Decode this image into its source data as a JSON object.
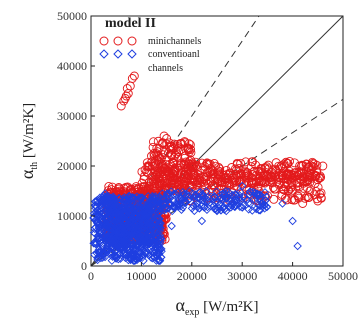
{
  "chart_data": {
    "type": "scatter",
    "model_label": "model II",
    "xlabel": {
      "symbol": "α",
      "subscript": "exp",
      "unit": " [W/m²K]"
    },
    "ylabel": {
      "symbol": "α",
      "subscript": "th",
      "unit": " [W/m²K]"
    },
    "xlim": [
      0,
      50000
    ],
    "ylim": [
      0,
      50000
    ],
    "xticks": [
      "0",
      "10000",
      "20000",
      "30000",
      "40000",
      "50000"
    ],
    "yticks": [
      "0",
      "10000",
      "20000",
      "30000",
      "40000",
      "50000"
    ],
    "reference_lines": [
      {
        "style": "solid",
        "slope": 1.0
      },
      {
        "style": "dashed",
        "slope": 1.5
      },
      {
        "style": "dashed",
        "slope": 0.6667
      }
    ],
    "legend_placement": "top-left",
    "series": [
      {
        "name": "minichannels",
        "marker": "circle",
        "color": "#e31a1c",
        "clusters": [
          {
            "x": [
              3000,
              15000
            ],
            "y": [
              5000,
              16000
            ],
            "n": 520
          },
          {
            "x": [
              10000,
              45000
            ],
            "y": [
              16500,
              21000
            ],
            "n": 260
          },
          {
            "x": [
              12000,
              20000
            ],
            "y": [
              15000,
              25000
            ],
            "n": 140
          },
          {
            "x": [
              18000,
              46000
            ],
            "y": [
              13000,
              19000
            ],
            "n": 220
          }
        ],
        "points": [
          [
            6000,
            32000
          ],
          [
            6500,
            33000
          ],
          [
            7000,
            34000
          ],
          [
            7200,
            35500
          ],
          [
            7800,
            36000
          ],
          [
            8200,
            37500
          ],
          [
            8600,
            38000
          ],
          [
            6800,
            33500
          ],
          [
            7400,
            34500
          ],
          [
            12000,
            22000
          ],
          [
            13500,
            23500
          ],
          [
            15000,
            25500
          ],
          [
            16000,
            24000
          ],
          [
            14500,
            26000
          ],
          [
            17000,
            22500
          ],
          [
            44000,
            20500
          ],
          [
            46000,
            20000
          ],
          [
            42000,
            12500
          ],
          [
            45000,
            13000
          ]
        ]
      },
      {
        "name": "conventioanl channels",
        "name_lines": [
          "conventioanl",
          "channels"
        ],
        "marker": "diamond",
        "color": "#1f3fe0",
        "clusters": [
          {
            "x": [
              500,
              14000
            ],
            "y": [
              1000,
              14000
            ],
            "n": 650
          },
          {
            "x": [
              14000,
              35000
            ],
            "y": [
              11000,
              15000
            ],
            "n": 200
          },
          {
            "x": [
              3000,
              12000
            ],
            "y": [
              4000,
              12000
            ],
            "n": 250
          }
        ],
        "points": [
          [
            2500,
            14000
          ],
          [
            2800,
            14500
          ],
          [
            3200,
            12500
          ],
          [
            5000,
            1500
          ],
          [
            8000,
            2000
          ],
          [
            11000,
            4000
          ],
          [
            13000,
            6000
          ],
          [
            16000,
            8000
          ],
          [
            22000,
            9000
          ],
          [
            25000,
            11000
          ],
          [
            38000,
            12500
          ],
          [
            41000,
            4000
          ],
          [
            40000,
            9000
          ],
          [
            30000,
            16000
          ],
          [
            34000,
            12000
          ]
        ]
      }
    ]
  }
}
